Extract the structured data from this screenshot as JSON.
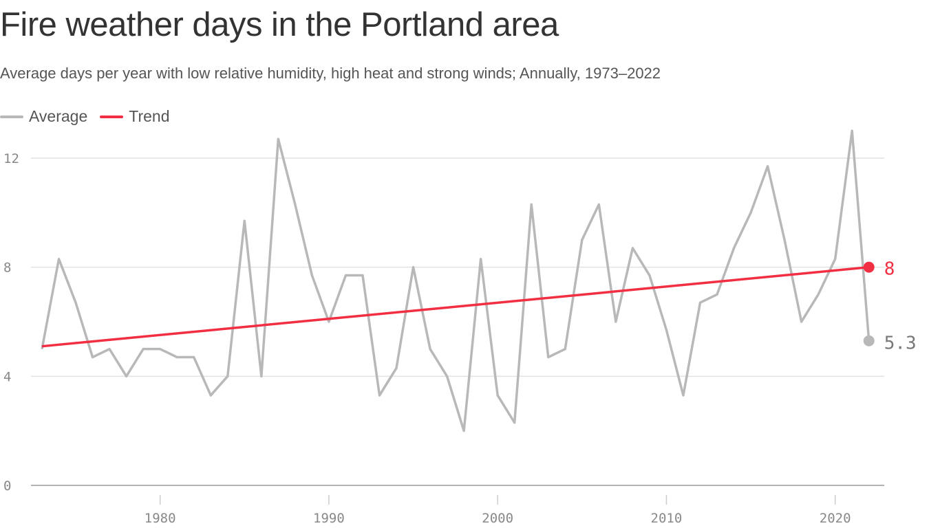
{
  "title": "Fire weather days in the Portland area",
  "subtitle": "Average days per year with low relative humidity, high heat and strong winds; Annually, 1973–2022",
  "legend": [
    {
      "label": "Average",
      "color": "#b8b8b8"
    },
    {
      "label": "Trend",
      "color": "#f22e42"
    }
  ],
  "chart_data": {
    "type": "line",
    "title": "Fire weather days in the Portland area",
    "xlim": [
      1973,
      2022
    ],
    "ylim": [
      0,
      12
    ],
    "x_ticks": [
      "1980",
      "1990",
      "2000",
      "2010",
      "2020"
    ],
    "y_ticks": [
      "0",
      "4",
      "8",
      "12"
    ],
    "grid": true,
    "legend_position": "top-left",
    "x": [
      1973,
      1974,
      1975,
      1976,
      1977,
      1978,
      1979,
      1980,
      1981,
      1982,
      1983,
      1984,
      1985,
      1986,
      1987,
      1988,
      1989,
      1990,
      1991,
      1992,
      1993,
      1994,
      1995,
      1996,
      1997,
      1998,
      1999,
      2000,
      2001,
      2002,
      2003,
      2004,
      2005,
      2006,
      2007,
      2008,
      2009,
      2010,
      2011,
      2012,
      2013,
      2014,
      2015,
      2016,
      2017,
      2018,
      2019,
      2020,
      2021,
      2022
    ],
    "series": [
      {
        "name": "Average",
        "color": "#b8b8b8",
        "values": [
          5.0,
          8.3,
          6.7,
          4.7,
          5.0,
          4.0,
          5.0,
          5.0,
          4.7,
          4.7,
          3.3,
          4.0,
          9.7,
          4.0,
          12.7,
          10.3,
          7.7,
          6.0,
          7.7,
          7.7,
          3.3,
          4.3,
          8.0,
          5.0,
          4.0,
          2.0,
          8.3,
          3.3,
          2.3,
          10.3,
          4.7,
          5.0,
          9.0,
          10.3,
          6.0,
          8.7,
          7.7,
          5.7,
          3.3,
          6.7,
          7.0,
          8.7,
          10.0,
          11.7,
          9.0,
          6.0,
          7.0,
          8.3,
          13.0,
          5.3
        ]
      },
      {
        "name": "Trend",
        "color": "#f22e42",
        "start": [
          1973,
          5.1
        ],
        "end": [
          2022,
          8.0
        ]
      }
    ],
    "annotations": [
      {
        "label": "8",
        "series": "Trend",
        "x": 2022
      },
      {
        "label": "5.3",
        "series": "Average",
        "x": 2022
      }
    ]
  }
}
